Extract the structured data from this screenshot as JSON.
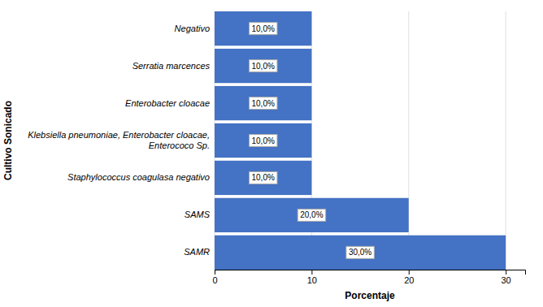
{
  "chart_data": {
    "type": "bar",
    "orientation": "horizontal",
    "categories": [
      "SAMR",
      "SAMS",
      "Staphylococcus coagulasa negativo",
      "Klebsiella pneumoniae, Enterobacter cloacae,\nEnterococo Sp.",
      "Enterobacter cloacae",
      "Serratia marcences",
      "Negativo"
    ],
    "values": [
      30.0,
      20.0,
      10.0,
      10.0,
      10.0,
      10.0,
      10.0
    ],
    "value_labels": [
      "30,0%",
      "20,0%",
      "10,0%",
      "10,0%",
      "10,0%",
      "10,0%",
      "10,0%"
    ],
    "data_labels": true,
    "color": "#4472C4",
    "xlabel": "Porcentaje",
    "ylabel": "Cultivo Sonicado",
    "xlim": [
      0,
      32
    ],
    "xticks": [
      0,
      10,
      20,
      30
    ],
    "grid": true
  }
}
